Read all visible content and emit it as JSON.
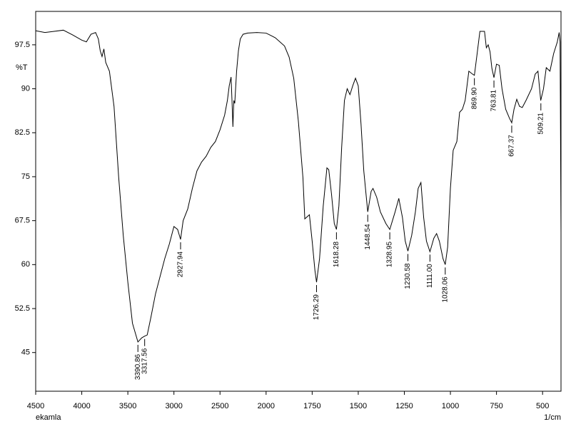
{
  "chart_data": {
    "type": "line",
    "x_label": "1/cm",
    "y_label": "%T",
    "sample": "ekamla",
    "color": "#000000",
    "x": [
      4500,
      4400,
      4300,
      4200,
      4100,
      4000,
      3950,
      3900,
      3850,
      3820,
      3800,
      3780,
      3760,
      3740,
      3700,
      3650,
      3600,
      3550,
      3500,
      3450,
      3400,
      3390.86,
      3350,
      3317.56,
      3290,
      3250,
      3200,
      3150,
      3100,
      3050,
      3000,
      2960,
      2927.94,
      2900,
      2850,
      2800,
      2750,
      2700,
      2650,
      2600,
      2550,
      2500,
      2450,
      2420,
      2400,
      2380,
      2370,
      2360,
      2350,
      2340,
      2320,
      2300,
      2280,
      2250,
      2200,
      2100,
      2000,
      1950,
      1900,
      1875,
      1850,
      1825,
      1800,
      1790,
      1765,
      1750,
      1735,
      1726.29,
      1710,
      1690,
      1670,
      1660,
      1645,
      1630,
      1618.28,
      1605,
      1590,
      1575,
      1560,
      1545,
      1530,
      1515,
      1500,
      1485,
      1470,
      1448.54,
      1430,
      1420,
      1400,
      1380,
      1350,
      1328.95,
      1300,
      1280,
      1260,
      1245,
      1230.58,
      1210,
      1190,
      1175,
      1160,
      1145,
      1130,
      1111,
      1090,
      1075,
      1060,
      1040,
      1028.06,
      1015,
      1000,
      985,
      965,
      950,
      935,
      920,
      900,
      880,
      869.9,
      855,
      840,
      815,
      805,
      795,
      785,
      775,
      763.81,
      750,
      735,
      720,
      700,
      680,
      667.37,
      655,
      640,
      625,
      610,
      590,
      560,
      540,
      525,
      510,
      495,
      480,
      460,
      440,
      420,
      410,
      405,
      400
    ],
    "values": [
      99.9,
      99.6,
      99.8,
      100.0,
      99.2,
      98.3,
      98.0,
      99.3,
      99.6,
      98.5,
      96.5,
      95.5,
      96.8,
      94.5,
      93,
      87,
      75,
      65,
      57,
      50,
      47.3,
      46.8,
      47.5,
      47.8,
      48.0,
      51,
      55,
      58,
      61,
      63.5,
      66.5,
      66,
      64.3,
      67.5,
      69.5,
      73,
      76,
      77.5,
      78.5,
      80,
      81,
      83,
      85.5,
      88,
      90.5,
      92,
      88,
      83.5,
      88,
      87.5,
      93,
      96.5,
      98.5,
      99.3,
      99.5,
      99.6,
      99.5,
      98.7,
      97.3,
      95.4,
      91.8,
      84.5,
      74.8,
      67.8,
      68.5,
      64,
      59,
      57.0,
      61,
      70,
      76.5,
      76.2,
      72,
      67,
      66.0,
      70,
      80,
      88,
      90,
      89,
      90.5,
      91.8,
      90.5,
      84,
      76,
      69.0,
      72.5,
      73,
      71.5,
      69,
      67,
      66.0,
      69,
      71.3,
      68,
      64,
      62.3,
      65,
      69,
      73,
      74,
      68,
      64,
      62.2,
      64.5,
      65.3,
      64,
      61,
      60.0,
      63,
      73,
      79.5,
      81,
      86,
      86.5,
      88,
      93,
      92.5,
      92.3,
      96,
      99.8,
      99.8,
      97,
      97.5,
      96.3,
      93.5,
      91.9,
      94.2,
      94,
      90,
      86.5,
      85,
      84.2,
      86.5,
      88.2,
      87,
      86.8,
      88,
      90,
      92.5,
      93,
      88,
      90,
      93.6,
      93,
      96,
      98,
      99.6,
      98,
      65.5
    ],
    "peaks": [
      {
        "x": 3390.86,
        "y": 46.8,
        "label": "3390.86"
      },
      {
        "x": 3317.56,
        "y": 47.8,
        "label": "3317.56"
      },
      {
        "x": 2927.94,
        "y": 64.3,
        "label": "2927.94"
      },
      {
        "x": 1726.29,
        "y": 57.0,
        "label": "1726.29"
      },
      {
        "x": 1618.28,
        "y": 66.0,
        "label": "1618.28"
      },
      {
        "x": 1448.54,
        "y": 69.0,
        "label": "1448.54"
      },
      {
        "x": 1328.95,
        "y": 66.0,
        "label": "1328.95"
      },
      {
        "x": 1230.58,
        "y": 62.3,
        "label": "1230.58"
      },
      {
        "x": 1111.0,
        "y": 62.2,
        "label": "1111.00"
      },
      {
        "x": 1028.06,
        "y": 60.0,
        "label": "1028.06"
      },
      {
        "x": 869.9,
        "y": 92.3,
        "label": "869.90"
      },
      {
        "x": 763.81,
        "y": 91.9,
        "label": "763.81"
      },
      {
        "x": 667.37,
        "y": 84.2,
        "label": "667.37"
      },
      {
        "x": 509.21,
        "y": 88.0,
        "label": "509.21"
      }
    ],
    "xlim": [
      4500,
      400
    ],
    "xticks": [
      4500,
      4000,
      3500,
      3000,
      2500,
      2000,
      1750,
      1500,
      1250,
      1000,
      750,
      500
    ],
    "ylim": [
      38.4,
      103.2
    ],
    "yticks": [
      45,
      52.5,
      60,
      67.5,
      75,
      82.5,
      90,
      97.5
    ],
    "grid": false
  }
}
